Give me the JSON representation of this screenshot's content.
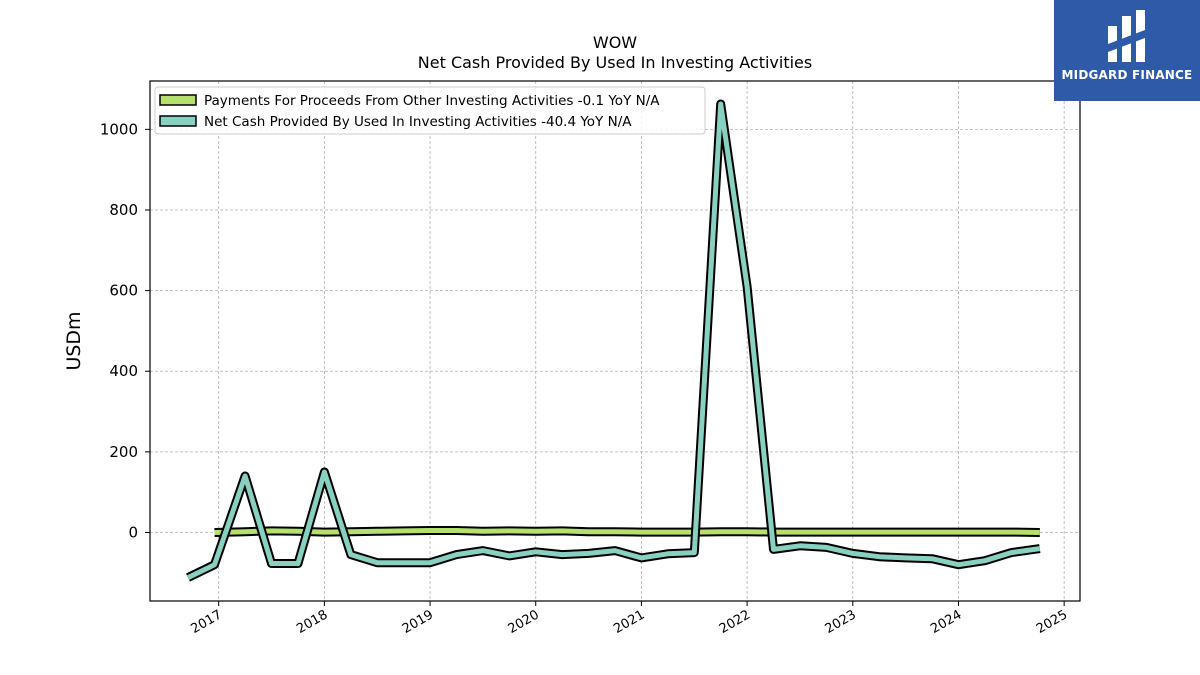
{
  "title_line1": "WOW",
  "title_line2": "Net Cash Provided By Used In Investing Activities",
  "brand": {
    "name": "MIDGARD FINANCE",
    "color": "#2f5aa8"
  },
  "chart_data": {
    "type": "line",
    "ylabel": "USDm",
    "ylim": [
      -170,
      1120
    ],
    "yticks": [
      0,
      200,
      400,
      600,
      800,
      1000
    ],
    "xlim": [
      2016.35,
      2025.15
    ],
    "xticks": [
      2017,
      2018,
      2019,
      2020,
      2021,
      2022,
      2023,
      2024,
      2025
    ],
    "grid": true,
    "legend_position": "upper-left",
    "series": [
      {
        "name": "Payments For Proceeds From Other Investing Activities",
        "legend_label": "Payments For Proceeds From Other Investing Activities  -0.1 YoY N/A",
        "color": "#b5e06e",
        "x": [
          2016.96,
          2017.25,
          2017.5,
          2017.75,
          2018.0,
          2018.25,
          2018.5,
          2018.75,
          2019.0,
          2019.25,
          2019.5,
          2019.75,
          2020.0,
          2020.25,
          2020.5,
          2020.75,
          2021.0,
          2021.25,
          2021.5,
          2021.75,
          2022.0,
          2022.25,
          2022.5,
          2022.75,
          2023.0,
          2023.25,
          2023.5,
          2023.75,
          2024.0,
          2024.25,
          2024.5,
          2024.77
        ],
        "values": [
          0,
          2,
          4,
          3,
          1,
          2,
          3,
          4,
          5,
          5,
          3,
          4,
          3,
          4,
          2,
          2,
          1,
          1,
          1,
          2,
          2,
          1,
          1,
          1,
          1,
          1,
          1,
          1,
          1,
          1,
          1,
          0
        ]
      },
      {
        "name": "Net Cash Provided By Used In Investing Activities",
        "legend_label": "Net Cash Provided By Used In Investing Activities  -40.4 YoY N/A",
        "color": "#88d0c0",
        "x": [
          2016.71,
          2016.96,
          2017.25,
          2017.5,
          2017.75,
          2018.0,
          2018.25,
          2018.5,
          2018.75,
          2019.0,
          2019.25,
          2019.5,
          2019.75,
          2020.0,
          2020.25,
          2020.5,
          2020.75,
          2021.0,
          2021.25,
          2021.5,
          2021.75,
          2022.0,
          2022.25,
          2022.5,
          2022.75,
          2023.0,
          2023.25,
          2023.5,
          2023.75,
          2024.0,
          2024.25,
          2024.5,
          2024.77
        ],
        "values": [
          -112,
          -80,
          140,
          -77,
          -77,
          150,
          -55,
          -75,
          -75,
          -75,
          -55,
          -45,
          -58,
          -48,
          -55,
          -52,
          -45,
          -63,
          -53,
          -50,
          1063,
          610,
          -42,
          -33,
          -37,
          -52,
          -60,
          -63,
          -65,
          -80,
          -70,
          -50,
          -40
        ]
      }
    ]
  }
}
